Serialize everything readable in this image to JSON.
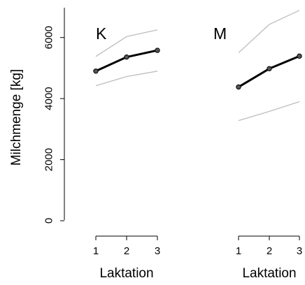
{
  "chart_data": {
    "type": "line",
    "ylabel": "Milchmenge [kg]",
    "ylim": [
      0,
      7000
    ],
    "y_ticks": [
      0,
      2000,
      4000,
      6000
    ],
    "panels": [
      {
        "label": "K",
        "xlabel": "Laktation",
        "x": [
          1,
          2,
          3
        ],
        "series": [
          {
            "values": [
              4900,
              5360,
              5580
            ],
            "color": "#000000",
            "role": "mean"
          },
          {
            "values": [
              5380,
              6030,
              6250
            ],
            "color": "#bdbdbd",
            "role": "upper"
          },
          {
            "values": [
              4420,
              4720,
              4900
            ],
            "color": "#bdbdbd",
            "role": "lower"
          }
        ]
      },
      {
        "label": "M",
        "xlabel": "Laktation",
        "x": [
          1,
          2,
          3
        ],
        "series": [
          {
            "values": [
              4380,
              4980,
              5390
            ],
            "color": "#000000",
            "role": "mean"
          },
          {
            "values": [
              5500,
              6430,
              6890
            ],
            "color": "#bdbdbd",
            "role": "upper"
          },
          {
            "values": [
              3280,
              3580,
              3900
            ],
            "color": "#bdbdbd",
            "role": "lower"
          }
        ]
      }
    ],
    "legend": "none",
    "grid": false
  }
}
